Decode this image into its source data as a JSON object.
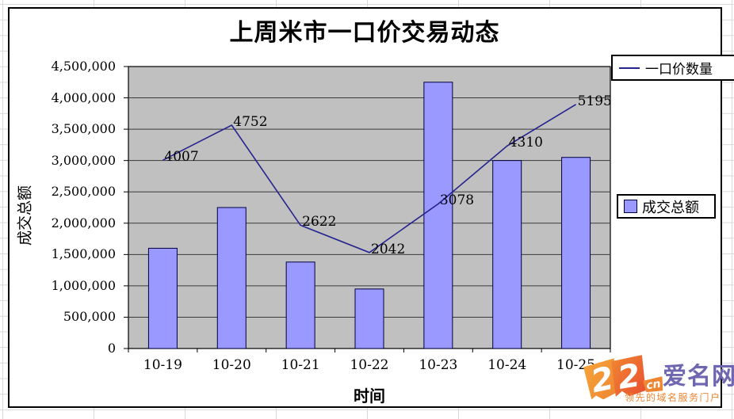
{
  "chart_data": {
    "type": "combo",
    "title": "上周米市一口价交易动态",
    "xlabel": "时间",
    "ylabel": "成交总额",
    "categories": [
      "10-19",
      "10-20",
      "10-21",
      "10-22",
      "10-23",
      "10-24",
      "10-25"
    ],
    "series": [
      {
        "name": "成交总额",
        "type": "bar",
        "axis": "left",
        "color": "#9999ff",
        "border_color": "#000040",
        "values": [
          1600000,
          2250000,
          1380000,
          950000,
          4250000,
          3000000,
          3050000
        ]
      },
      {
        "name": "一口价数量",
        "type": "line",
        "axis": "right-hidden",
        "color": "#24248f",
        "values": [
          4007,
          4752,
          2622,
          2042,
          3078,
          4310,
          5195
        ],
        "data_labels": [
          "4007",
          "4752",
          "2622",
          "2042",
          "3078",
          "4310",
          "5195"
        ]
      }
    ],
    "left_axis": {
      "min": 0,
      "max": 4500000,
      "step": 500000,
      "tick_labels": [
        "0",
        "500,000",
        "1,000,000",
        "1,500,000",
        "2,000,000",
        "2,500,000",
        "3,000,000",
        "3,500,000",
        "4,000,000",
        "4,500,000"
      ]
    },
    "line_axis": {
      "min": 0,
      "max": 6000,
      "visible": false
    },
    "plot_bg": "#c0c0c0",
    "grid": "horizontal",
    "legend_line_label": "一口价数量",
    "legend_bar_label": "成交总额"
  },
  "watermark": {
    "number_left": "2",
    "number_right": "2",
    "suffix": "cn",
    "brand": "爱名网",
    "tagline": "领先的域名服务门户"
  }
}
